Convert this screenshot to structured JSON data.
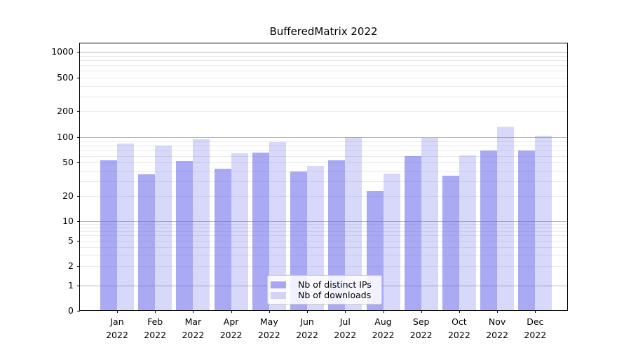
{
  "chart_data": {
    "type": "bar",
    "title": "BufferedMatrix 2022",
    "categories": [
      "Jan 2022",
      "Feb 2022",
      "Mar 2022",
      "Apr 2022",
      "May 2022",
      "Jun 2022",
      "Jul 2022",
      "Aug 2022",
      "Sep 2022",
      "Oct 2022",
      "Nov 2022",
      "Dec 2022"
    ],
    "series": [
      {
        "name": "Nb of distinct IPs",
        "base_color": "#6868EB",
        "alpha": 0.56,
        "values": [
          53,
          36,
          52,
          42,
          66,
          39,
          53,
          23,
          60,
          35,
          70,
          69
        ]
      },
      {
        "name": "Nb of downloads",
        "base_color": "#6868EB",
        "alpha": 0.26,
        "values": [
          85,
          80,
          94,
          64,
          88,
          46,
          100,
          37,
          99,
          61,
          133,
          104
        ]
      }
    ],
    "yscale": "symlog",
    "yticks": [
      1000,
      500,
      200,
      100,
      50,
      20,
      10,
      5,
      2,
      1,
      0
    ],
    "ylim": [
      0,
      1280
    ],
    "xlabel": "",
    "ylabel": "",
    "grid": {
      "on": true,
      "major_color": "#b5b5b5",
      "minor_color": "#e9e9e9"
    },
    "legend": {
      "position": "lower-center"
    },
    "axis_color": "#000000",
    "background": "#ffffff"
  }
}
